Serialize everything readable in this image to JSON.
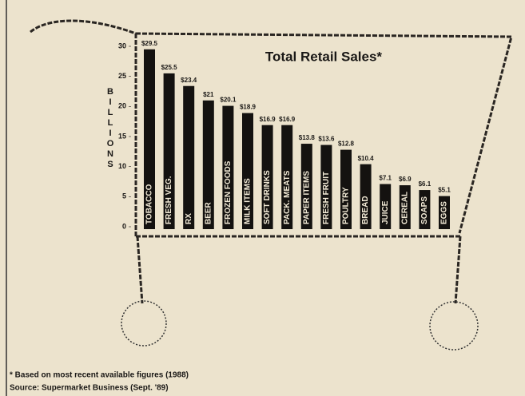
{
  "chart_data": {
    "type": "bar",
    "title": "Total Retail Sales*",
    "y_label": "BILLIONS",
    "categories": [
      "TOBACCO",
      "FRESH VEG.",
      "RX",
      "BEER",
      "FROZEN FOODS",
      "MILK ITEMS",
      "SOFT DRINKS",
      "PACK. MEATS",
      "PAPER ITEMS",
      "FRESH FRUIT",
      "POULTRY",
      "BREAD",
      "JUICE",
      "CEREAL",
      "SOAPS",
      "EGGS"
    ],
    "values": [
      29.5,
      25.5,
      23.4,
      21,
      20.1,
      18.9,
      16.9,
      16.9,
      13.8,
      13.6,
      12.8,
      10.4,
      7.1,
      6.9,
      6.1,
      5.1
    ],
    "value_labels": [
      "$29.5",
      "$25.5",
      "$23.4",
      "$21",
      "$20.1",
      "$18.9",
      "$16.9",
      "$16.9",
      "$13.8",
      "$13.6",
      "$12.8",
      "$10.4",
      "$7.1",
      "$6.9",
      "$6.1",
      "$5.1"
    ],
    "color": "#141210",
    "ylim": [
      0,
      30
    ],
    "yticks": [
      0,
      5,
      10,
      15,
      20,
      25,
      30
    ],
    "footnote": "* Based on most recent available figures (1988)",
    "source": "Source: Supermarket Business (Sept. '89)"
  }
}
